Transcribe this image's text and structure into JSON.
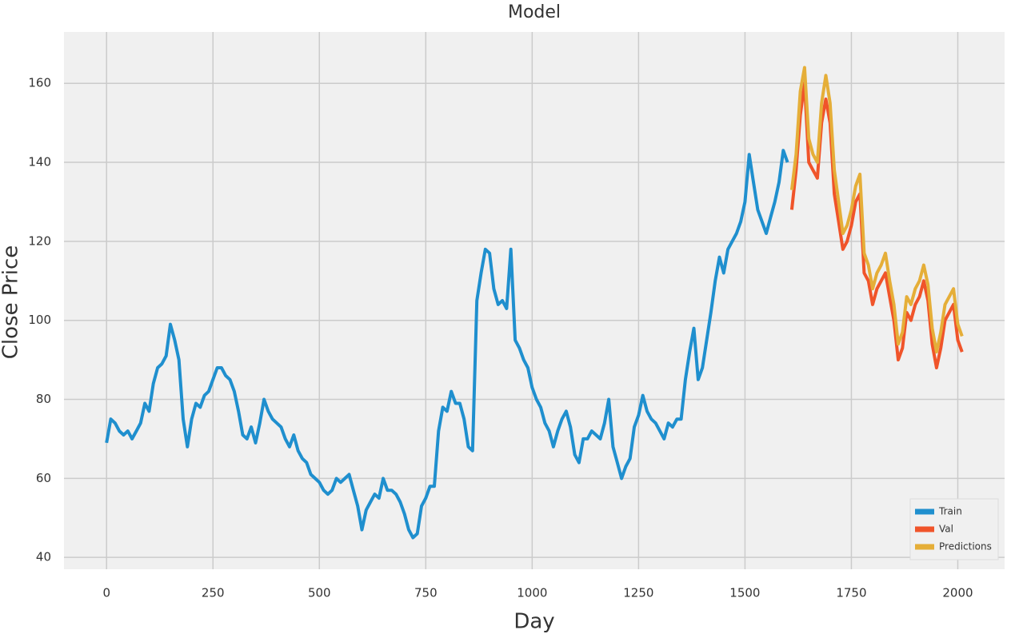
{
  "chart_data": {
    "type": "line",
    "title": "Model",
    "xlabel": "Day",
    "ylabel": "Close Price",
    "xlim": [
      -100,
      2110
    ],
    "ylim": [
      37,
      173
    ],
    "xticks": [
      0,
      250,
      500,
      750,
      1000,
      1250,
      1500,
      1750,
      2000
    ],
    "yticks": [
      40,
      60,
      80,
      100,
      120,
      140,
      160
    ],
    "grid": true,
    "legend": "lower right",
    "series": [
      {
        "name": "Train",
        "color": "#1f8fce",
        "x": [
          0,
          10,
          20,
          30,
          40,
          50,
          60,
          70,
          80,
          90,
          100,
          110,
          120,
          130,
          140,
          150,
          160,
          170,
          180,
          190,
          200,
          210,
          220,
          230,
          240,
          250,
          260,
          270,
          280,
          290,
          300,
          310,
          320,
          330,
          340,
          350,
          360,
          370,
          380,
          390,
          400,
          410,
          420,
          430,
          440,
          450,
          460,
          470,
          480,
          490,
          500,
          510,
          520,
          530,
          540,
          550,
          560,
          570,
          580,
          590,
          600,
          610,
          620,
          630,
          640,
          650,
          660,
          670,
          680,
          690,
          700,
          710,
          720,
          730,
          740,
          750,
          760,
          770,
          780,
          790,
          800,
          810,
          820,
          830,
          840,
          850,
          860,
          870,
          880,
          890,
          900,
          910,
          920,
          930,
          940,
          950,
          960,
          970,
          980,
          990,
          1000,
          1010,
          1020,
          1030,
          1040,
          1050,
          1060,
          1070,
          1080,
          1090,
          1100,
          1110,
          1120,
          1130,
          1140,
          1150,
          1160,
          1170,
          1180,
          1190,
          1200,
          1210,
          1220,
          1230,
          1240,
          1250,
          1260,
          1270,
          1280,
          1290,
          1300,
          1310,
          1320,
          1330,
          1340,
          1350,
          1360,
          1370,
          1380,
          1390,
          1400,
          1410,
          1420,
          1430,
          1440,
          1450,
          1460,
          1470,
          1480,
          1490,
          1500,
          1510,
          1520,
          1530,
          1540,
          1550,
          1560,
          1570,
          1580,
          1590,
          1600
        ],
        "values": [
          69,
          75,
          74,
          72,
          71,
          72,
          70,
          72,
          74,
          79,
          77,
          84,
          88,
          89,
          91,
          99,
          95,
          90,
          75,
          68,
          75,
          79,
          78,
          81,
          82,
          85,
          88,
          88,
          86,
          85,
          82,
          77,
          71,
          70,
          73,
          69,
          74,
          80,
          77,
          75,
          74,
          73,
          70,
          68,
          71,
          67,
          65,
          64,
          61,
          60,
          59,
          57,
          56,
          57,
          60,
          59,
          60,
          61,
          57,
          53,
          47,
          52,
          54,
          56,
          55,
          60,
          57,
          57,
          56,
          54,
          51,
          47,
          45,
          46,
          53,
          55,
          58,
          58,
          72,
          78,
          77,
          82,
          79,
          79,
          75,
          68,
          67,
          105,
          112,
          118,
          117,
          108,
          104,
          105,
          103,
          118,
          95,
          93,
          90,
          88,
          83,
          80,
          78,
          74,
          72,
          68,
          72,
          75,
          77,
          73,
          66,
          64,
          70,
          70,
          72,
          71,
          70,
          74,
          80,
          68,
          64,
          60,
          63,
          65,
          73,
          76,
          81,
          77,
          75,
          74,
          72,
          70,
          74,
          73,
          75,
          75,
          85,
          92,
          98,
          85,
          88,
          95,
          102,
          110,
          116,
          112,
          118,
          120,
          122,
          125,
          130,
          142,
          135,
          128,
          125,
          122,
          126,
          130,
          135,
          143,
          140
        ]
      },
      {
        "name": "Val",
        "color": "#f0542a",
        "x": [
          1610,
          1620,
          1630,
          1640,
          1650,
          1660,
          1670,
          1680,
          1690,
          1700,
          1710,
          1720,
          1730,
          1740,
          1750,
          1760,
          1770,
          1780,
          1790,
          1800,
          1810,
          1820,
          1830,
          1840,
          1850,
          1860,
          1870,
          1880,
          1890,
          1900,
          1910,
          1920,
          1930,
          1940,
          1950,
          1960,
          1970,
          1980,
          1990,
          2000,
          2010
        ],
        "values": [
          128,
          138,
          152,
          160,
          140,
          138,
          136,
          150,
          156,
          150,
          132,
          125,
          118,
          120,
          124,
          130,
          132,
          112,
          110,
          104,
          108,
          110,
          112,
          106,
          100,
          90,
          93,
          102,
          100,
          104,
          106,
          110,
          105,
          94,
          88,
          93,
          100,
          102,
          104,
          95,
          92
        ]
      },
      {
        "name": "Predictions",
        "color": "#e5ae38",
        "x": [
          1610,
          1620,
          1630,
          1640,
          1650,
          1660,
          1670,
          1680,
          1690,
          1700,
          1710,
          1720,
          1730,
          1740,
          1750,
          1760,
          1770,
          1780,
          1790,
          1800,
          1810,
          1820,
          1830,
          1840,
          1850,
          1860,
          1870,
          1880,
          1890,
          1900,
          1910,
          1920,
          1930,
          1940,
          1950,
          1960,
          1970,
          1980,
          1990,
          2000,
          2010
        ],
        "values": [
          133,
          142,
          158,
          164,
          146,
          142,
          140,
          155,
          162,
          155,
          138,
          130,
          122,
          124,
          128,
          134,
          137,
          117,
          114,
          108,
          112,
          114,
          117,
          110,
          104,
          94,
          97,
          106,
          104,
          108,
          110,
          114,
          109,
          98,
          92,
          97,
          104,
          106,
          108,
          99,
          96
        ]
      }
    ]
  }
}
